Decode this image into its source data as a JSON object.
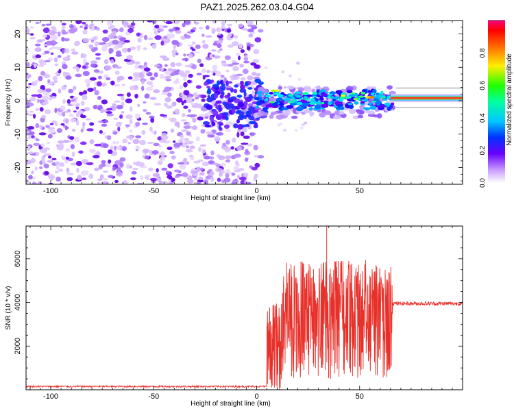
{
  "title": "PAZ1.2025.262.03.04.G04",
  "colors": {
    "snr_line": "#e8302a",
    "ridge": "#e8302a",
    "frame": "#000000"
  },
  "chart_data": [
    {
      "type": "heatmap",
      "xlabel": "Height of straight line (km)",
      "ylabel": "Frequency (Hz)",
      "xlim": [
        -112,
        100
      ],
      "ylim": [
        -25,
        24
      ],
      "xticks": [
        -100,
        -50,
        0,
        50
      ],
      "yticks": [
        -20,
        -10,
        0,
        10,
        20
      ],
      "colorbar": {
        "label": "Normalized spectral amplitude",
        "range": [
          0,
          1
        ],
        "ticks": [
          "0.0",
          "0.2",
          "0.4",
          "0.6",
          "0.8"
        ],
        "colormap": "rainbow"
      },
      "ridge": {
        "x": [
          65,
          100
        ],
        "frequency": 0.8
      }
    },
    {
      "type": "line",
      "xlabel": "Height of straight line (km)",
      "ylabel": "SNR (10 * v/v)",
      "xlim": [
        -112,
        100
      ],
      "ylim": [
        0,
        7500
      ],
      "xticks": [
        -100,
        -50,
        0,
        50
      ],
      "yticks": [
        2000,
        4000,
        6000
      ],
      "series": [
        {
          "segments": [
            {
              "x_start": -112,
              "x_end": 5,
              "mean": 150,
              "noise": 40
            },
            {
              "x_start": 5,
              "x_end": 12,
              "mean": 2200,
              "noise": 1400
            },
            {
              "x_start": 12,
              "x_end": 66,
              "mean": 3500,
              "noise": 1900
            },
            {
              "x_start": 66,
              "x_end": 100,
              "mean": 3950,
              "noise": 90
            }
          ],
          "peak": {
            "x": 34,
            "y": 7500
          }
        }
      ]
    }
  ]
}
